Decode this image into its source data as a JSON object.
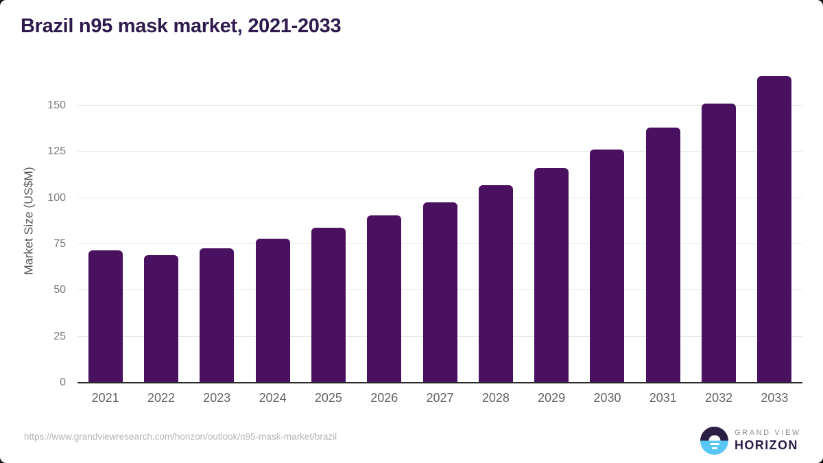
{
  "page": {
    "title": "Brazil n95 mask market, 2021-2033"
  },
  "chart_data": {
    "type": "bar",
    "title": "Brazil n95 mask market, 2021-2033",
    "categories": [
      "2021",
      "2022",
      "2023",
      "2024",
      "2025",
      "2026",
      "2027",
      "2028",
      "2029",
      "2030",
      "2031",
      "2032",
      "2033"
    ],
    "values": [
      71.8,
      69.1,
      72.7,
      77.9,
      83.9,
      90.4,
      97.8,
      106.8,
      116.3,
      126.3,
      138.0,
      151.0,
      165.8
    ],
    "xlabel": "",
    "ylabel": "Market Size (US$M)",
    "ylim": [
      0,
      167
    ],
    "yticks": [
      0,
      25,
      50,
      75,
      100,
      125,
      150
    ],
    "grid": true,
    "legend": "none",
    "bar_color": "#4a1161"
  },
  "footer": {
    "source_url": "https://www.grandviewresearch.com/horizon/outlook/n95-mask-market/brazil",
    "logo": {
      "brand_top": "GRAND VIEW",
      "brand_bottom": "HORIZON"
    }
  },
  "colors": {
    "title_text": "#2f1a4d",
    "bar": "#4a1161",
    "gridline": "#e6e6e6",
    "axis_line": "#2b2b2b",
    "x_tick_text": "#636363",
    "y_tick_text": "#7a7a7a",
    "y_axis_title_text": "#595959",
    "source_url_text": "#b5b5b5",
    "logo_top_half": "#2b1e44",
    "logo_bottom_half": "#58c7f3",
    "logo_text_gray": "#8d8d95",
    "logo_text_purple": "#2b1a45"
  }
}
